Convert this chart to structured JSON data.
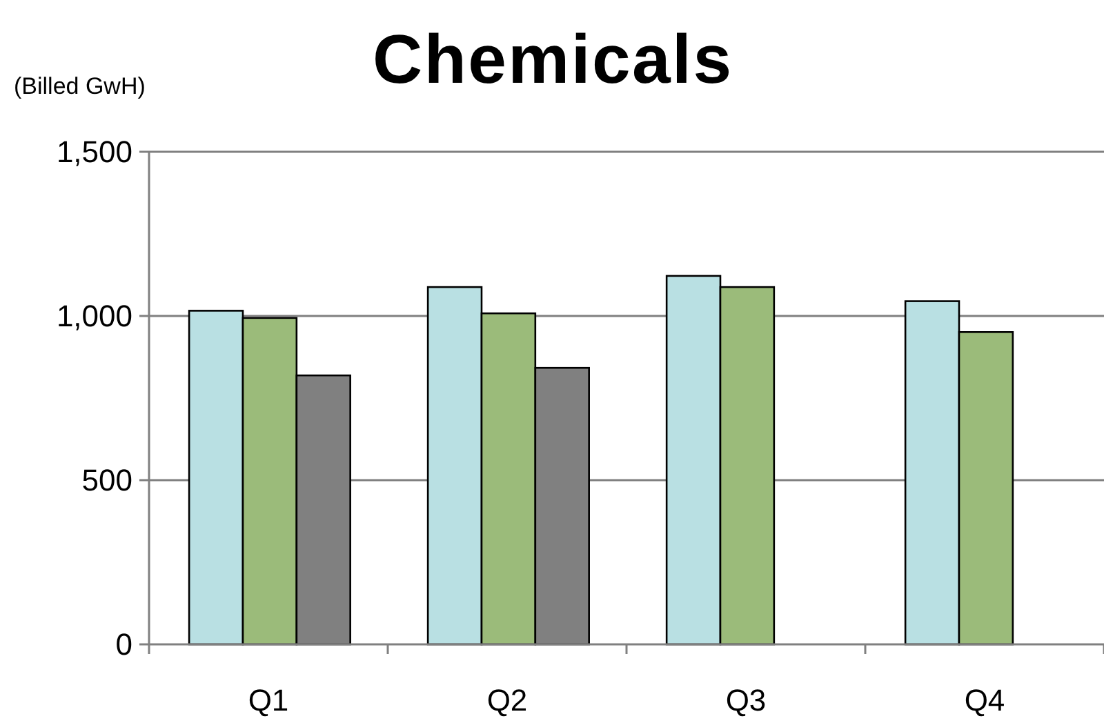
{
  "chart_data": {
    "type": "bar",
    "title": "Chemicals",
    "ylabel": "(Billed GwH)",
    "categories": [
      "Q1",
      "Q2",
      "Q3",
      "Q4"
    ],
    "series": [
      {
        "color": "#b9e0e3",
        "values": [
          1016,
          1088,
          1122,
          1045
        ]
      },
      {
        "color": "#9bbb7a",
        "values": [
          994,
          1008,
          1088,
          951
        ]
      },
      {
        "color": "#808080",
        "values": [
          819,
          842,
          null,
          null
        ]
      }
    ],
    "ylim": [
      0,
      1500
    ],
    "yticks": [
      0,
      {
        "value": 500,
        "label": "500"
      },
      {
        "value": 1000,
        "label": "1,000"
      },
      {
        "value": 1500,
        "label": "1,500"
      }
    ],
    "grid": "y"
  }
}
